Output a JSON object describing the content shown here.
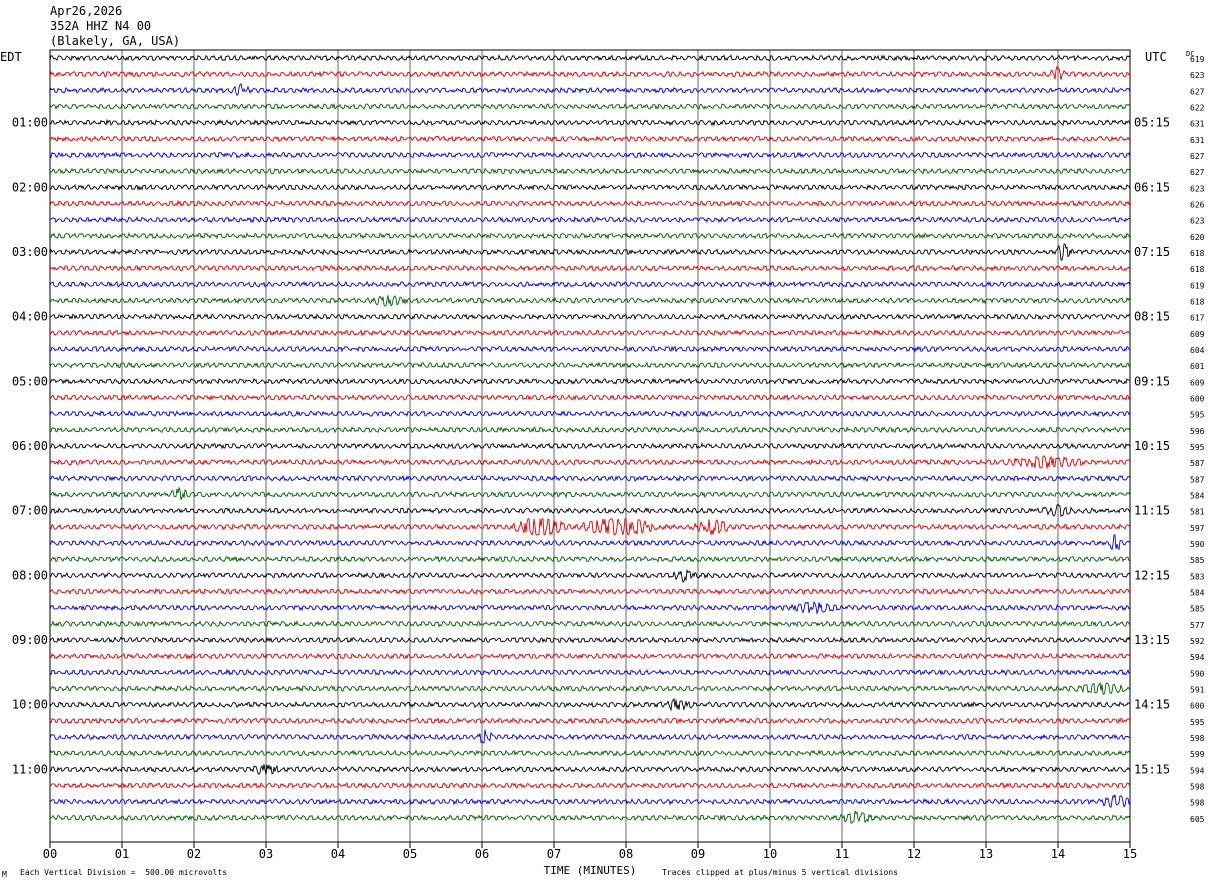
{
  "header": {
    "date": "Apr26,2026",
    "station": "352A HHZ N4 00",
    "location": "(Blakely, GA, USA)"
  },
  "left_tz": "EDT",
  "right_tz": "UTC",
  "dc_label": "DC",
  "footer": {
    "scale_note": "Each Vertical Division =  500.00 microvolts",
    "clip_note": "Traces clipped at plus/minus 5 vertical divisions",
    "corner_mark": "M"
  },
  "colors": {
    "cycle": [
      "#000000",
      "#e00000",
      "#0000e0",
      "#006000"
    ],
    "grid": "#000000"
  },
  "chart_data": {
    "type": "line",
    "title": "352A HHZ N4 00",
    "xlabel": "TIME (MINUTES)",
    "xlim": [
      0,
      15
    ],
    "x_ticks": [
      "00",
      "01",
      "02",
      "03",
      "04",
      "05",
      "06",
      "07",
      "08",
      "09",
      "10",
      "11",
      "12",
      "13",
      "14",
      "15"
    ],
    "rows": 48,
    "minutes_per_row": 15,
    "left_hour_labels": [
      "01:00",
      "02:00",
      "03:00",
      "04:00",
      "05:00",
      "06:00",
      "07:00",
      "08:00",
      "09:00",
      "10:00",
      "11:00"
    ],
    "right_hour_labels": [
      "05:15",
      "06:15",
      "07:15",
      "08:15",
      "09:15",
      "10:15",
      "11:15",
      "12:15",
      "13:15",
      "14:15",
      "15:15"
    ],
    "hour_label_rows": [
      4,
      8,
      12,
      16,
      20,
      24,
      28,
      32,
      36,
      40,
      44
    ],
    "dc_offsets": [
      619,
      623,
      627,
      622,
      631,
      631,
      627,
      627,
      623,
      626,
      623,
      620,
      618,
      618,
      619,
      618,
      617,
      609,
      604,
      601,
      609,
      600,
      595,
      596,
      595,
      587,
      587,
      584,
      581,
      597,
      590,
      585,
      583,
      584,
      585,
      577,
      592,
      594,
      590,
      591,
      600,
      595,
      598,
      599,
      594,
      598,
      598,
      605
    ],
    "events": [
      {
        "row": 1,
        "minute": 14.0,
        "width": 0.12,
        "amp": 2.2
      },
      {
        "row": 2,
        "minute": 2.65,
        "width": 0.15,
        "amp": 1.8
      },
      {
        "row": 12,
        "minute": 14.07,
        "width": 0.1,
        "amp": 3.5
      },
      {
        "row": 15,
        "minute": 4.7,
        "width": 0.3,
        "amp": 1.5
      },
      {
        "row": 25,
        "minute": 13.8,
        "width": 0.6,
        "amp": 1.8
      },
      {
        "row": 27,
        "minute": 1.8,
        "width": 0.15,
        "amp": 2.0
      },
      {
        "row": 28,
        "minute": 14.0,
        "width": 0.25,
        "amp": 1.6
      },
      {
        "row": 29,
        "minute": 6.8,
        "width": 0.4,
        "amp": 4.0
      },
      {
        "row": 29,
        "minute": 7.9,
        "width": 0.6,
        "amp": 3.5
      },
      {
        "row": 29,
        "minute": 9.2,
        "width": 0.3,
        "amp": 2.5
      },
      {
        "row": 30,
        "minute": 14.8,
        "width": 0.1,
        "amp": 3.5
      },
      {
        "row": 32,
        "minute": 8.8,
        "width": 0.2,
        "amp": 1.8
      },
      {
        "row": 34,
        "minute": 10.6,
        "width": 0.4,
        "amp": 1.6
      },
      {
        "row": 39,
        "minute": 14.6,
        "width": 0.4,
        "amp": 1.5
      },
      {
        "row": 40,
        "minute": 8.7,
        "width": 0.25,
        "amp": 1.8
      },
      {
        "row": 42,
        "minute": 6.05,
        "width": 0.1,
        "amp": 3.5
      },
      {
        "row": 44,
        "minute": 3.0,
        "width": 0.2,
        "amp": 2.0
      },
      {
        "row": 46,
        "minute": 14.8,
        "width": 0.25,
        "amp": 2.0
      },
      {
        "row": 47,
        "minute": 11.2,
        "width": 0.25,
        "amp": 1.8
      }
    ]
  }
}
